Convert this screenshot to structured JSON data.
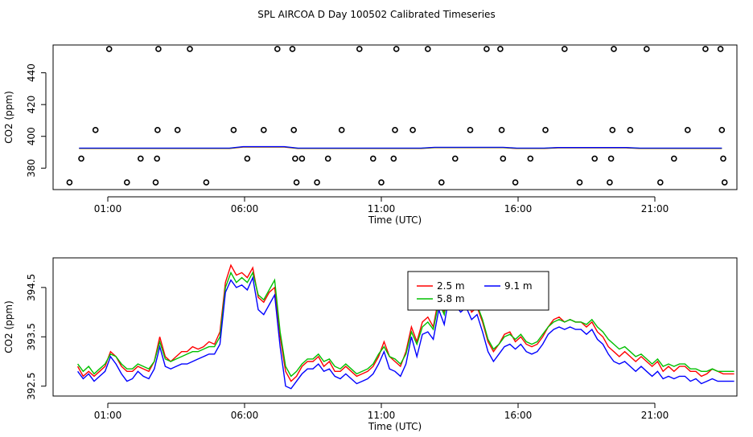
{
  "title": "SPL AIRCOA D  Day 100502  Calibrated Timeseries",
  "chart_data": [
    {
      "type": "scatter",
      "xlabel": "Time (UTC)",
      "ylabel": "CO2 (ppm)",
      "xlim": [
        -1.0,
        24.0
      ],
      "ylim": [
        366.5,
        457.5
      ],
      "x_ticks": [
        1,
        6,
        11,
        16,
        21
      ],
      "x_tick_labels": [
        "01:00",
        "06:00",
        "11:00",
        "16:00",
        "21:00"
      ],
      "y_ticks": [
        380,
        400,
        420,
        440
      ],
      "y_tick_labels": [
        "380",
        "400",
        "420",
        "440"
      ],
      "calibration_points": [
        {
          "x": -0.4,
          "y": 371
        },
        {
          "x": 0.03,
          "y": 386
        },
        {
          "x": 0.55,
          "y": 404
        },
        {
          "x": 1.05,
          "y": 455
        },
        {
          "x": 1.7,
          "y": 371
        },
        {
          "x": 2.2,
          "y": 386
        },
        {
          "x": 2.75,
          "y": 371
        },
        {
          "x": 2.8,
          "y": 386
        },
        {
          "x": 2.82,
          "y": 404
        },
        {
          "x": 2.85,
          "y": 455
        },
        {
          "x": 3.55,
          "y": 404
        },
        {
          "x": 4.0,
          "y": 455
        },
        {
          "x": 4.6,
          "y": 371
        },
        {
          "x": 5.6,
          "y": 404
        },
        {
          "x": 6.1,
          "y": 386
        },
        {
          "x": 6.7,
          "y": 404
        },
        {
          "x": 7.2,
          "y": 455
        },
        {
          "x": 7.75,
          "y": 455
        },
        {
          "x": 7.8,
          "y": 404
        },
        {
          "x": 7.85,
          "y": 386
        },
        {
          "x": 7.9,
          "y": 371
        },
        {
          "x": 8.1,
          "y": 386
        },
        {
          "x": 8.65,
          "y": 371
        },
        {
          "x": 9.05,
          "y": 386
        },
        {
          "x": 9.55,
          "y": 404
        },
        {
          "x": 10.2,
          "y": 455
        },
        {
          "x": 10.7,
          "y": 386
        },
        {
          "x": 11.0,
          "y": 371
        },
        {
          "x": 11.45,
          "y": 386
        },
        {
          "x": 11.5,
          "y": 404
        },
        {
          "x": 11.55,
          "y": 455
        },
        {
          "x": 12.15,
          "y": 404
        },
        {
          "x": 12.7,
          "y": 455
        },
        {
          "x": 13.2,
          "y": 371
        },
        {
          "x": 13.7,
          "y": 386
        },
        {
          "x": 14.25,
          "y": 404
        },
        {
          "x": 14.85,
          "y": 455
        },
        {
          "x": 15.35,
          "y": 455
        },
        {
          "x": 15.4,
          "y": 404
        },
        {
          "x": 15.45,
          "y": 386
        },
        {
          "x": 15.9,
          "y": 371
        },
        {
          "x": 16.45,
          "y": 386
        },
        {
          "x": 17.0,
          "y": 404
        },
        {
          "x": 17.7,
          "y": 455
        },
        {
          "x": 18.25,
          "y": 371
        },
        {
          "x": 18.8,
          "y": 386
        },
        {
          "x": 19.35,
          "y": 371
        },
        {
          "x": 19.4,
          "y": 386
        },
        {
          "x": 19.45,
          "y": 404
        },
        {
          "x": 19.5,
          "y": 455
        },
        {
          "x": 20.1,
          "y": 404
        },
        {
          "x": 20.7,
          "y": 455
        },
        {
          "x": 21.2,
          "y": 371
        },
        {
          "x": 21.7,
          "y": 386
        },
        {
          "x": 22.2,
          "y": 404
        },
        {
          "x": 22.85,
          "y": 455
        },
        {
          "x": 23.4,
          "y": 455
        },
        {
          "x": 23.45,
          "y": 404
        },
        {
          "x": 23.5,
          "y": 386
        },
        {
          "x": 23.55,
          "y": 371
        }
      ],
      "series_level": {
        "name": "timeseries",
        "y_approx": 392.5,
        "colors": [
          "#ff0000",
          "#00c000",
          "#0000ff"
        ]
      }
    },
    {
      "type": "line",
      "xlabel": "Time (UTC)",
      "ylabel": "CO2 (ppm)",
      "xlim": [
        -1.0,
        24.0
      ],
      "ylim": [
        392.3,
        395.1
      ],
      "x_ticks": [
        1,
        6,
        11,
        16,
        21
      ],
      "x_tick_labels": [
        "01:00",
        "06:00",
        "11:00",
        "16:00",
        "21:00"
      ],
      "y_ticks": [
        392.5,
        393.5,
        394.5
      ],
      "y_tick_labels": [
        "392.5",
        "393.5",
        "394.5"
      ],
      "legend": {
        "placement": "top-center",
        "entries": [
          {
            "label": "2.5 m",
            "color": "#ff0000"
          },
          {
            "label": "9.1 m",
            "color": "#0000ff"
          },
          {
            "label": "5.8 m",
            "color": "#00c000"
          }
        ]
      },
      "x": [
        -0.1,
        0.1,
        0.3,
        0.5,
        0.7,
        0.9,
        1.1,
        1.3,
        1.5,
        1.7,
        1.9,
        2.1,
        2.3,
        2.5,
        2.7,
        2.9,
        3.1,
        3.3,
        3.5,
        3.7,
        3.9,
        4.1,
        4.3,
        4.5,
        4.7,
        4.9,
        5.1,
        5.3,
        5.5,
        5.7,
        5.9,
        6.1,
        6.3,
        6.5,
        6.7,
        6.9,
        7.1,
        7.3,
        7.5,
        7.7,
        7.9,
        8.1,
        8.3,
        8.5,
        8.7,
        8.9,
        9.1,
        9.3,
        9.5,
        9.7,
        9.9,
        10.1,
        10.3,
        10.5,
        10.7,
        10.9,
        11.1,
        11.3,
        11.5,
        11.7,
        11.9,
        12.1,
        12.3,
        12.5,
        12.7,
        12.9,
        13.1,
        13.3,
        13.5,
        13.7,
        13.9,
        14.1,
        14.3,
        14.5,
        14.7,
        14.9,
        15.1,
        15.3,
        15.5,
        15.7,
        15.9,
        16.1,
        16.3,
        16.5,
        16.7,
        16.9,
        17.1,
        17.3,
        17.5,
        17.7,
        17.9,
        18.1,
        18.3,
        18.5,
        18.7,
        18.9,
        19.1,
        19.3,
        19.5,
        19.7,
        19.9,
        20.1,
        20.3,
        20.5,
        20.7,
        20.9,
        21.1,
        21.3,
        21.5,
        21.7,
        21.9,
        22.1,
        22.3,
        22.5,
        22.7,
        22.9,
        23.1,
        23.3,
        23.5,
        23.7,
        23.9
      ],
      "series": [
        {
          "name": "2.5 m",
          "color": "#ff0000",
          "values": [
            392.9,
            392.7,
            392.8,
            392.7,
            392.8,
            392.9,
            393.2,
            393.1,
            392.9,
            392.8,
            392.8,
            392.9,
            392.85,
            392.8,
            393.0,
            393.5,
            393.1,
            393.0,
            393.1,
            393.2,
            393.2,
            393.3,
            393.25,
            393.3,
            393.4,
            393.35,
            393.6,
            394.6,
            394.95,
            394.75,
            394.8,
            394.7,
            394.9,
            394.3,
            394.2,
            394.4,
            394.5,
            393.5,
            392.8,
            392.6,
            392.7,
            392.9,
            393.0,
            393.0,
            393.1,
            392.9,
            393.0,
            392.8,
            392.8,
            392.9,
            392.8,
            392.7,
            392.75,
            392.8,
            392.9,
            393.1,
            393.4,
            393.1,
            393.0,
            392.9,
            393.2,
            393.7,
            393.4,
            393.8,
            393.9,
            393.7,
            394.3,
            394.0,
            394.7,
            394.4,
            394.2,
            394.3,
            394.0,
            394.1,
            393.8,
            393.4,
            393.2,
            393.35,
            393.55,
            393.6,
            393.4,
            393.5,
            393.35,
            393.3,
            393.35,
            393.5,
            393.7,
            393.85,
            393.9,
            393.8,
            393.85,
            393.8,
            393.8,
            393.7,
            393.8,
            393.6,
            393.5,
            393.3,
            393.2,
            393.1,
            393.2,
            393.1,
            393.0,
            393.1,
            393.0,
            392.9,
            393.0,
            392.8,
            392.9,
            392.8,
            392.9,
            392.9,
            392.8,
            392.8,
            392.7,
            392.75,
            392.85,
            392.8,
            392.75,
            392.75,
            392.75
          ]
        },
        {
          "name": "5.8 m",
          "color": "#00c000",
          "values": [
            392.95,
            392.8,
            392.9,
            392.75,
            392.85,
            392.95,
            393.15,
            393.1,
            392.95,
            392.85,
            392.85,
            392.95,
            392.9,
            392.85,
            393.0,
            393.4,
            393.05,
            393.0,
            393.05,
            393.1,
            393.15,
            393.2,
            393.2,
            393.25,
            393.3,
            393.3,
            393.5,
            394.5,
            394.8,
            394.6,
            394.7,
            394.6,
            394.8,
            394.35,
            394.25,
            394.45,
            394.65,
            393.6,
            392.9,
            392.7,
            392.8,
            392.95,
            393.05,
            393.05,
            393.15,
            393.0,
            393.05,
            392.9,
            392.85,
            392.95,
            392.85,
            392.75,
            392.8,
            392.85,
            392.95,
            393.15,
            393.3,
            393.1,
            393.05,
            392.95,
            393.15,
            393.6,
            393.35,
            393.7,
            393.8,
            393.65,
            394.2,
            393.95,
            394.55,
            394.35,
            394.2,
            394.3,
            394.05,
            394.15,
            393.85,
            393.45,
            393.25,
            393.35,
            393.5,
            393.55,
            393.45,
            393.55,
            393.4,
            393.35,
            393.4,
            393.55,
            393.7,
            393.8,
            393.85,
            393.8,
            393.85,
            393.8,
            393.8,
            393.75,
            393.85,
            393.7,
            393.6,
            393.45,
            393.35,
            393.25,
            393.3,
            393.2,
            393.1,
            393.15,
            393.05,
            392.95,
            393.05,
            392.9,
            392.95,
            392.9,
            392.95,
            392.95,
            392.85,
            392.85,
            392.8,
            392.8,
            392.85,
            392.8,
            392.8,
            392.8,
            392.8
          ]
        },
        {
          "name": "9.1 m",
          "color": "#0000ff",
          "values": [
            392.8,
            392.65,
            392.75,
            392.6,
            392.7,
            392.8,
            393.1,
            392.95,
            392.75,
            392.6,
            392.65,
            392.8,
            392.7,
            392.65,
            392.85,
            393.3,
            392.9,
            392.85,
            392.9,
            392.95,
            392.95,
            393.0,
            393.05,
            393.1,
            393.15,
            393.15,
            393.35,
            394.4,
            394.65,
            394.5,
            394.55,
            394.45,
            394.7,
            394.05,
            393.95,
            394.15,
            394.35,
            393.3,
            392.5,
            392.45,
            392.6,
            392.75,
            392.85,
            392.85,
            392.95,
            392.8,
            392.85,
            392.7,
            392.65,
            392.75,
            392.65,
            392.55,
            392.6,
            392.65,
            392.75,
            392.95,
            393.2,
            392.85,
            392.8,
            392.7,
            392.95,
            393.5,
            393.1,
            393.55,
            393.6,
            393.45,
            394.05,
            393.75,
            394.4,
            394.15,
            394.0,
            394.1,
            393.85,
            393.95,
            393.6,
            393.2,
            393.0,
            393.15,
            393.3,
            393.35,
            393.25,
            393.35,
            393.2,
            393.15,
            393.2,
            393.35,
            393.55,
            393.65,
            393.7,
            393.65,
            393.7,
            393.65,
            393.65,
            393.55,
            393.65,
            393.45,
            393.35,
            393.15,
            393.0,
            392.95,
            393.0,
            392.9,
            392.8,
            392.9,
            392.8,
            392.7,
            392.8,
            392.65,
            392.7,
            392.65,
            392.7,
            392.7,
            392.6,
            392.65,
            392.55,
            392.6,
            392.65,
            392.6,
            392.6,
            392.6,
            392.6
          ]
        }
      ]
    }
  ]
}
